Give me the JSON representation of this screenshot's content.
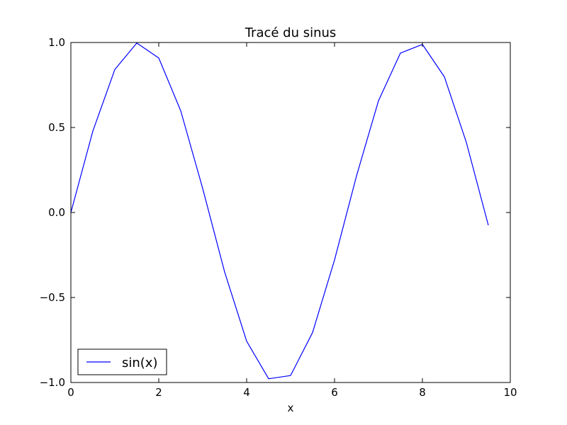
{
  "chart_data": {
    "type": "line",
    "title": "Tracé du sinus",
    "xlabel": "x",
    "ylabel": "",
    "xlim": [
      0,
      10
    ],
    "ylim": [
      -1.0,
      1.0
    ],
    "x_ticks": [
      0,
      2,
      4,
      6,
      8,
      10
    ],
    "x_tick_labels": [
      "0",
      "2",
      "4",
      "6",
      "8",
      "10"
    ],
    "y_ticks": [
      1.0,
      0.5,
      0.0,
      -0.5,
      -1.0
    ],
    "y_tick_labels": [
      "1.0",
      "0.5",
      "0.0",
      "−0.5",
      "−1.0"
    ],
    "grid": false,
    "legend_position": "lower-left",
    "series": [
      {
        "name": "sin(x)",
        "color": "#0000ff",
        "x": [
          0,
          0.5,
          1.0,
          1.5,
          2.0,
          2.5,
          3.0,
          3.5,
          4.0,
          4.5,
          5.0,
          5.5,
          6.0,
          6.5,
          7.0,
          7.5,
          8.0,
          8.5,
          9.0,
          9.5
        ],
        "y": [
          0.0,
          0.479,
          0.841,
          0.997,
          0.909,
          0.598,
          0.141,
          -0.351,
          -0.757,
          -0.978,
          -0.959,
          -0.706,
          -0.279,
          0.215,
          0.657,
          0.938,
          0.989,
          0.798,
          0.412,
          -0.075
        ]
      }
    ]
  }
}
